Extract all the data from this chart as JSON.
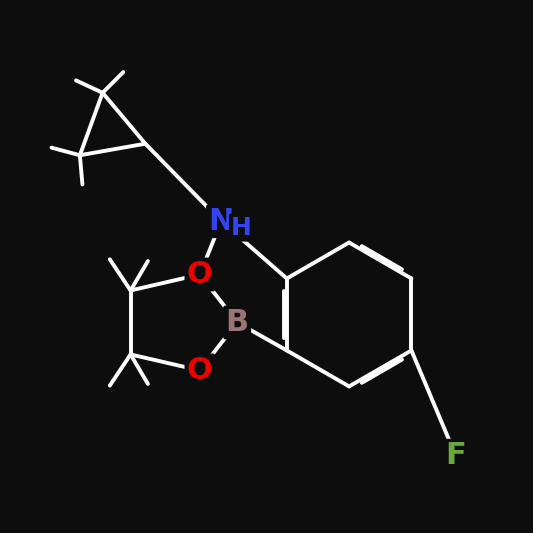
{
  "bg_color": "#0d0d0d",
  "bond_color": "#ffffff",
  "bond_width": 2.8,
  "N_color": "#3344ee",
  "O_color": "#ee0000",
  "B_color": "#9B7575",
  "F_color": "#6aaa3a",
  "font_size": 20,
  "xlim": [
    0,
    10
  ],
  "ylim": [
    0,
    10
  ]
}
